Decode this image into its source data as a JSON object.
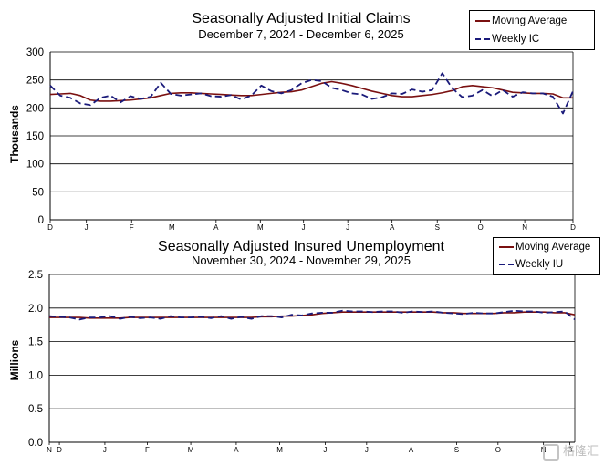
{
  "chart_data": [
    {
      "type": "line",
      "title": "Seasonally Adjusted Initial Claims",
      "subtitle": "December 7, 2024 - December 6, 2025",
      "ylabel": "Thousands",
      "xlabel": "",
      "ylim": [
        0,
        300
      ],
      "yticks": [
        "0",
        "50",
        "100",
        "150",
        "200",
        "250",
        "300"
      ],
      "ytick_values": [
        0,
        50,
        100,
        150,
        200,
        250,
        300
      ],
      "xlim": [
        0,
        52
      ],
      "xtick_labels": [
        "D",
        "J",
        "F",
        "M",
        "A",
        "M",
        "J",
        "J",
        "A",
        "S",
        "O",
        "N",
        "D"
      ],
      "xtick_positions": [
        0,
        3.6,
        8.1,
        12.1,
        16.5,
        20.9,
        25.2,
        29.6,
        34.0,
        38.5,
        42.8,
        47.2,
        52
      ],
      "grid": true,
      "legend_position": "top-right",
      "series": [
        {
          "name": "Moving Average",
          "color": "#7a1010",
          "style": "solid",
          "values": [
            224,
            225,
            226,
            222,
            214,
            212,
            212,
            213,
            214,
            216,
            218,
            222,
            226,
            227,
            227,
            226,
            225,
            224,
            223,
            222,
            222,
            224,
            226,
            228,
            229,
            232,
            238,
            244,
            247,
            244,
            240,
            235,
            230,
            226,
            222,
            220,
            220,
            222,
            224,
            227,
            231,
            238,
            240,
            238,
            236,
            232,
            228,
            227,
            226,
            226,
            225,
            218,
            218
          ]
        },
        {
          "name": "Weekly IC",
          "color": "#1a1a7a",
          "style": "dashed",
          "values": [
            240,
            222,
            218,
            208,
            205,
            218,
            222,
            210,
            221,
            216,
            220,
            245,
            225,
            222,
            224,
            226,
            221,
            220,
            223,
            215,
            222,
            240,
            230,
            226,
            232,
            244,
            250,
            248,
            236,
            232,
            226,
            224,
            216,
            219,
            226,
            225,
            233,
            229,
            232,
            262,
            235,
            219,
            222,
            232,
            221,
            232,
            220,
            228,
            226,
            226,
            220,
            190,
            230
          ]
        }
      ]
    },
    {
      "type": "line",
      "title": "Seasonally Adjusted Insured Unemployment",
      "subtitle": "November 30, 2024 - November 29, 2025",
      "ylabel": "Millions",
      "xlabel": "",
      "ylim": [
        0,
        2.5
      ],
      "yticks": [
        "0.0",
        "0.5",
        "1.0",
        "1.5",
        "2.0",
        "2.5"
      ],
      "ytick_values": [
        0,
        0.5,
        1.0,
        1.5,
        2.0,
        2.5
      ],
      "xlim": [
        0,
        52
      ],
      "xtick_labels": [
        "N",
        "D",
        "J",
        "F",
        "M",
        "A",
        "M",
        "J",
        "J",
        "A",
        "S",
        "O",
        "N",
        "D"
      ],
      "xtick_positions": [
        0,
        1,
        5.5,
        9.7,
        14.0,
        18.5,
        22.8,
        27.3,
        31.4,
        35.8,
        40.3,
        44.4,
        48.9,
        51.5
      ],
      "grid": true,
      "legend_position": "top-right",
      "series": [
        {
          "name": "Moving Average",
          "color": "#7a1010",
          "style": "solid",
          "values": [
            1.86,
            1.86,
            1.86,
            1.86,
            1.85,
            1.85,
            1.85,
            1.85,
            1.86,
            1.86,
            1.86,
            1.86,
            1.86,
            1.86,
            1.86,
            1.86,
            1.86,
            1.86,
            1.86,
            1.86,
            1.86,
            1.87,
            1.87,
            1.88,
            1.88,
            1.89,
            1.9,
            1.92,
            1.93,
            1.94,
            1.94,
            1.94,
            1.94,
            1.94,
            1.94,
            1.94,
            1.94,
            1.94,
            1.94,
            1.93,
            1.93,
            1.92,
            1.92,
            1.92,
            1.92,
            1.93,
            1.93,
            1.94,
            1.94,
            1.94,
            1.93,
            1.93,
            1.9
          ]
        },
        {
          "name": "Weekly IU",
          "color": "#1a1a7a",
          "style": "dashed",
          "values": [
            1.88,
            1.87,
            1.86,
            1.83,
            1.86,
            1.86,
            1.88,
            1.84,
            1.87,
            1.85,
            1.86,
            1.84,
            1.88,
            1.86,
            1.86,
            1.87,
            1.85,
            1.88,
            1.84,
            1.87,
            1.84,
            1.88,
            1.88,
            1.86,
            1.9,
            1.89,
            1.92,
            1.93,
            1.93,
            1.96,
            1.95,
            1.95,
            1.94,
            1.95,
            1.95,
            1.93,
            1.95,
            1.94,
            1.95,
            1.93,
            1.92,
            1.91,
            1.93,
            1.92,
            1.92,
            1.94,
            1.96,
            1.95,
            1.95,
            1.93,
            1.94,
            1.95,
            1.83
          ]
        }
      ]
    }
  ],
  "watermark": "格隆汇"
}
